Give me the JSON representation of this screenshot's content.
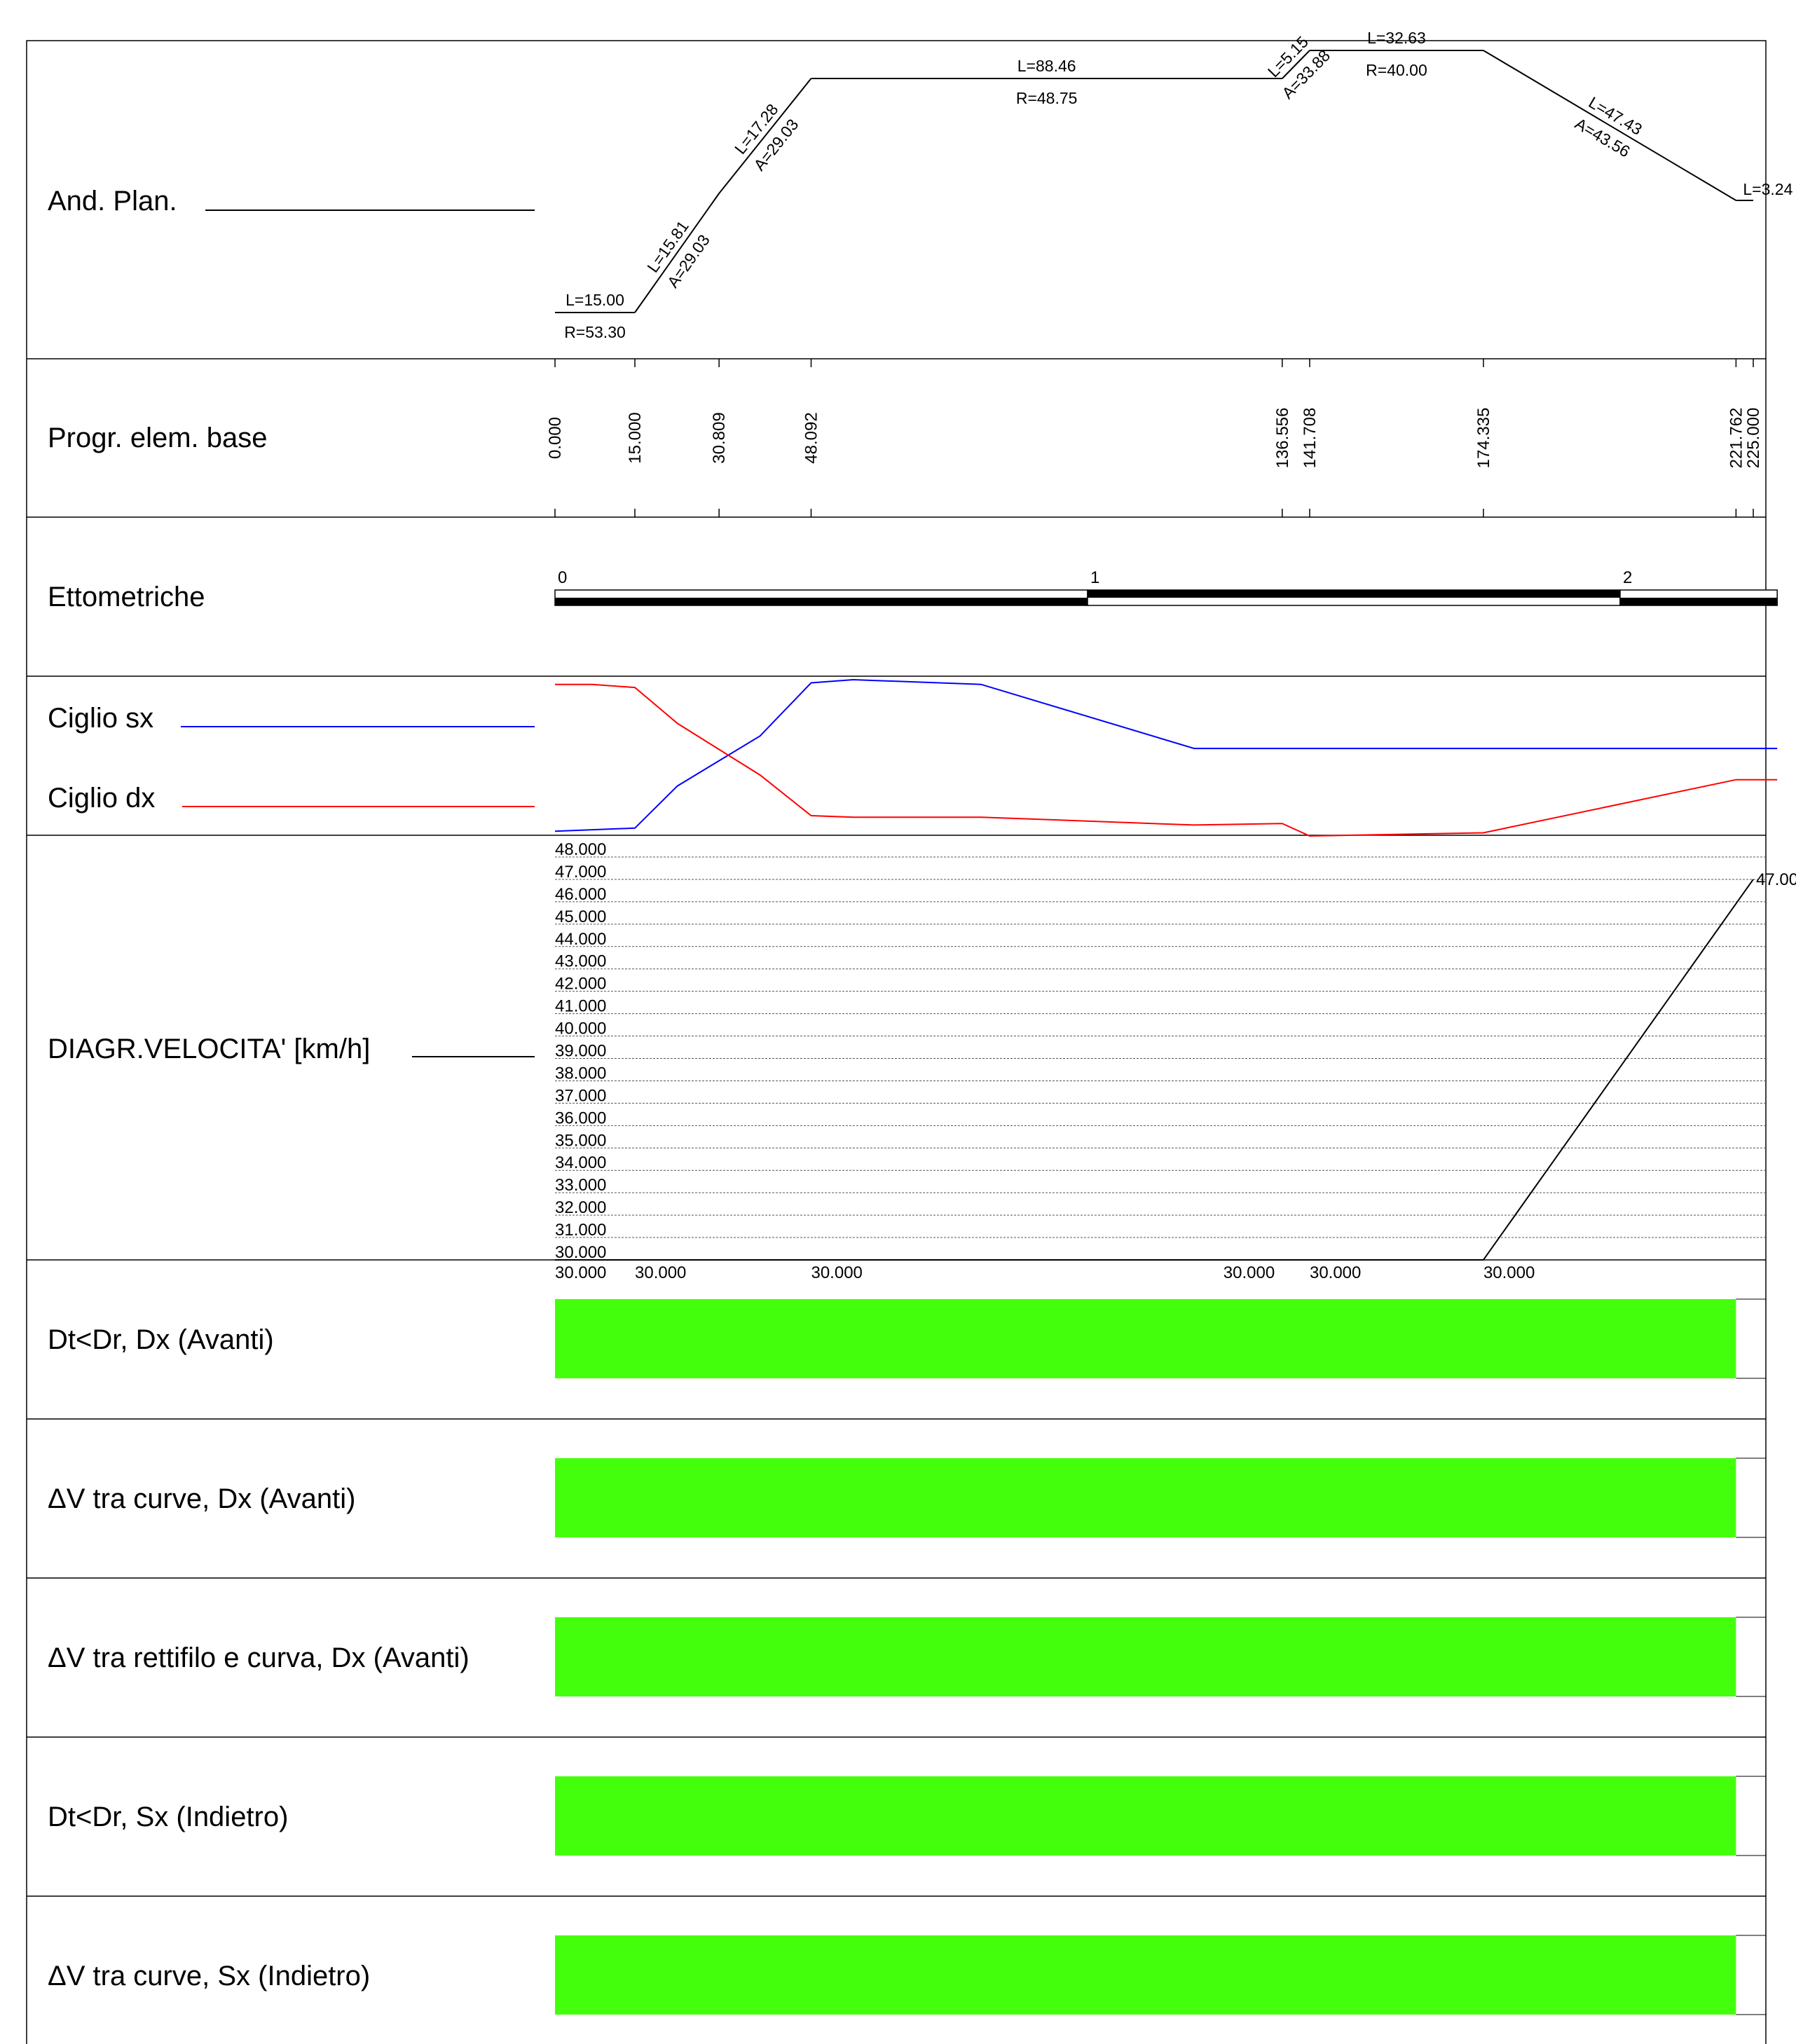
{
  "rows": {
    "plan": {
      "label": "And. Plan."
    },
    "progr": {
      "label": "Progr. elem. base"
    },
    "etto": {
      "label": "Ettometriche"
    },
    "ciglio": {
      "sx_label": "Ciglio sx",
      "dx_label": "Ciglio dx",
      "sx_color": "#0000ff",
      "dx_color": "#ff0000"
    },
    "speed": {
      "label": "DIAGR.VELOCITA' [km/h]"
    },
    "checks": [
      {
        "label": "Dt<Dr, Dx (Avanti)",
        "status_color": "#44ff0b",
        "coverage": [
          0,
          221.762
        ]
      },
      {
        "label": "ΔV tra curve, Dx (Avanti)",
        "status_color": "#44ff0b",
        "coverage": [
          0,
          221.762
        ]
      },
      {
        "label": "ΔV tra rettifilo e curva, Dx (Avanti)",
        "status_color": "#44ff0b",
        "coverage": [
          0,
          221.762
        ]
      },
      {
        "label": "Dt<Dr, Sx (Indietro)",
        "status_color": "#44ff0b",
        "coverage": [
          0,
          221.762
        ]
      },
      {
        "label": "ΔV tra curve, Sx (Indietro)",
        "status_color": "#44ff0b",
        "coverage": [
          0,
          221.762
        ]
      }
    ]
  },
  "plan_elements": [
    {
      "type": "curve",
      "start": 0.0,
      "end": 15.0,
      "length": "L=15.00",
      "param": "R=53.30",
      "level": "low"
    },
    {
      "type": "transition",
      "start": 15.0,
      "end": 30.809,
      "length": "L=15.81",
      "param": "A=29.03",
      "from": "low",
      "to": "mid"
    },
    {
      "type": "transition",
      "start": 30.809,
      "end": 48.092,
      "length": "L=17.28",
      "param": "A=29.03",
      "from": "mid",
      "to": "high"
    },
    {
      "type": "curve",
      "start": 48.092,
      "end": 136.556,
      "length": "L=88.46",
      "param": "R=48.75",
      "level": "high"
    },
    {
      "type": "transition",
      "start": 136.556,
      "end": 141.708,
      "length": "L=5.15",
      "param": "A=33.88",
      "from": "high",
      "to": "top"
    },
    {
      "type": "curve",
      "start": 141.708,
      "end": 174.335,
      "length": "L=32.63",
      "param": "R=40.00",
      "level": "top"
    },
    {
      "type": "transition",
      "start": 174.335,
      "end": 221.762,
      "length": "L=47.43",
      "param": "A=43.56",
      "from": "top",
      "to": "lowmid"
    },
    {
      "type": "tangent",
      "start": 221.762,
      "end": 225.0,
      "length": "L=3.24",
      "param": "",
      "level": "lowmid"
    }
  ],
  "progressives": [
    "0.000",
    "15.000",
    "30.809",
    "48.092",
    "136.556",
    "141.708",
    "174.335",
    "221.762",
    "225.000"
  ],
  "hectometric": {
    "labels": [
      "0",
      "1",
      "2"
    ],
    "length": 229.5
  },
  "ciglio_data": {
    "sx": [
      [
        0,
        0.03
      ],
      [
        15,
        0.05
      ],
      [
        23,
        0.32
      ],
      [
        38.5,
        0.64
      ],
      [
        48.092,
        0.98
      ],
      [
        56,
        1.0
      ],
      [
        80,
        0.97
      ],
      [
        120,
        0.56
      ],
      [
        229.5,
        0.56
      ]
    ],
    "dx": [
      [
        0,
        0.97
      ],
      [
        7,
        0.97
      ],
      [
        15,
        0.95
      ],
      [
        23,
        0.72
      ],
      [
        38.5,
        0.39
      ],
      [
        48.092,
        0.13
      ],
      [
        56,
        0.12
      ],
      [
        80,
        0.12
      ],
      [
        120,
        0.07
      ],
      [
        136.556,
        0.08
      ],
      [
        141.708,
        0.0
      ],
      [
        174.335,
        0.02
      ],
      [
        221.762,
        0.36
      ],
      [
        229.5,
        0.36
      ]
    ]
  },
  "chart_data": {
    "type": "line",
    "x": [
      0.0,
      15.0,
      48.092,
      136.556,
      141.708,
      174.335,
      225.0
    ],
    "series": [
      {
        "values": [
          30.0,
          30.0,
          30.0,
          30.0,
          30.0,
          30.0,
          47.0
        ]
      }
    ],
    "ylim": [
      30,
      48
    ],
    "xlim": [
      0,
      229.5
    ],
    "ytick_labels": [
      "30.000",
      "31.000",
      "32.000",
      "33.000",
      "34.000",
      "35.000",
      "36.000",
      "37.000",
      "38.000",
      "39.000",
      "40.000",
      "41.000",
      "42.000",
      "43.000",
      "44.000",
      "45.000",
      "46.000",
      "47.000",
      "48.000"
    ],
    "speed_labels": [
      {
        "x": 0.0,
        "text": "30.000"
      },
      {
        "x": 15.0,
        "text": "30.000"
      },
      {
        "x": 48.092,
        "text": "30.000"
      },
      {
        "x": 125.5,
        "text": "30.000"
      },
      {
        "x": 141.708,
        "text": "30.000"
      },
      {
        "x": 174.335,
        "text": "30.000"
      }
    ],
    "end_label": "47.00",
    "grid": true
  }
}
